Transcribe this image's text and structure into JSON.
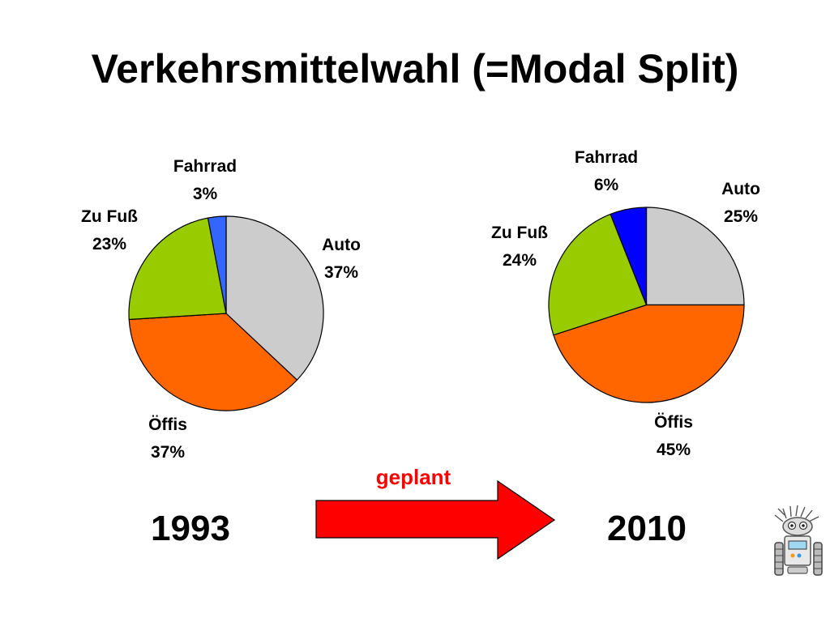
{
  "title": "Verkehrsmittelwahl (=Modal Split)",
  "arrow": {
    "label": "geplant",
    "color": "#ff0000"
  },
  "colors": {
    "Auto": "#cccccc",
    "Öffis": "#ff6600",
    "Zu Fuß": "#99cc00",
    "Fahrrad": {
      "1993": "#3366ff",
      "2010": "#0000ff"
    }
  },
  "mascot_icon": "robot-mascot-icon",
  "chart_data": [
    {
      "type": "pie",
      "year": "1993",
      "slices": [
        {
          "label": "Auto",
          "value": 37,
          "display": "37%"
        },
        {
          "label": "Öffis",
          "value": 37,
          "display": "37%"
        },
        {
          "label": "Zu Fuß",
          "value": 23,
          "display": "23%"
        },
        {
          "label": "Fahrrad",
          "value": 3,
          "display": "3%"
        }
      ]
    },
    {
      "type": "pie",
      "year": "2010",
      "slices": [
        {
          "label": "Auto",
          "value": 25,
          "display": "25%"
        },
        {
          "label": "Öffis",
          "value": 45,
          "display": "45%"
        },
        {
          "label": "Zu Fuß",
          "value": 24,
          "display": "24%"
        },
        {
          "label": "Fahrrad",
          "value": 6,
          "display": "6%"
        }
      ]
    }
  ]
}
